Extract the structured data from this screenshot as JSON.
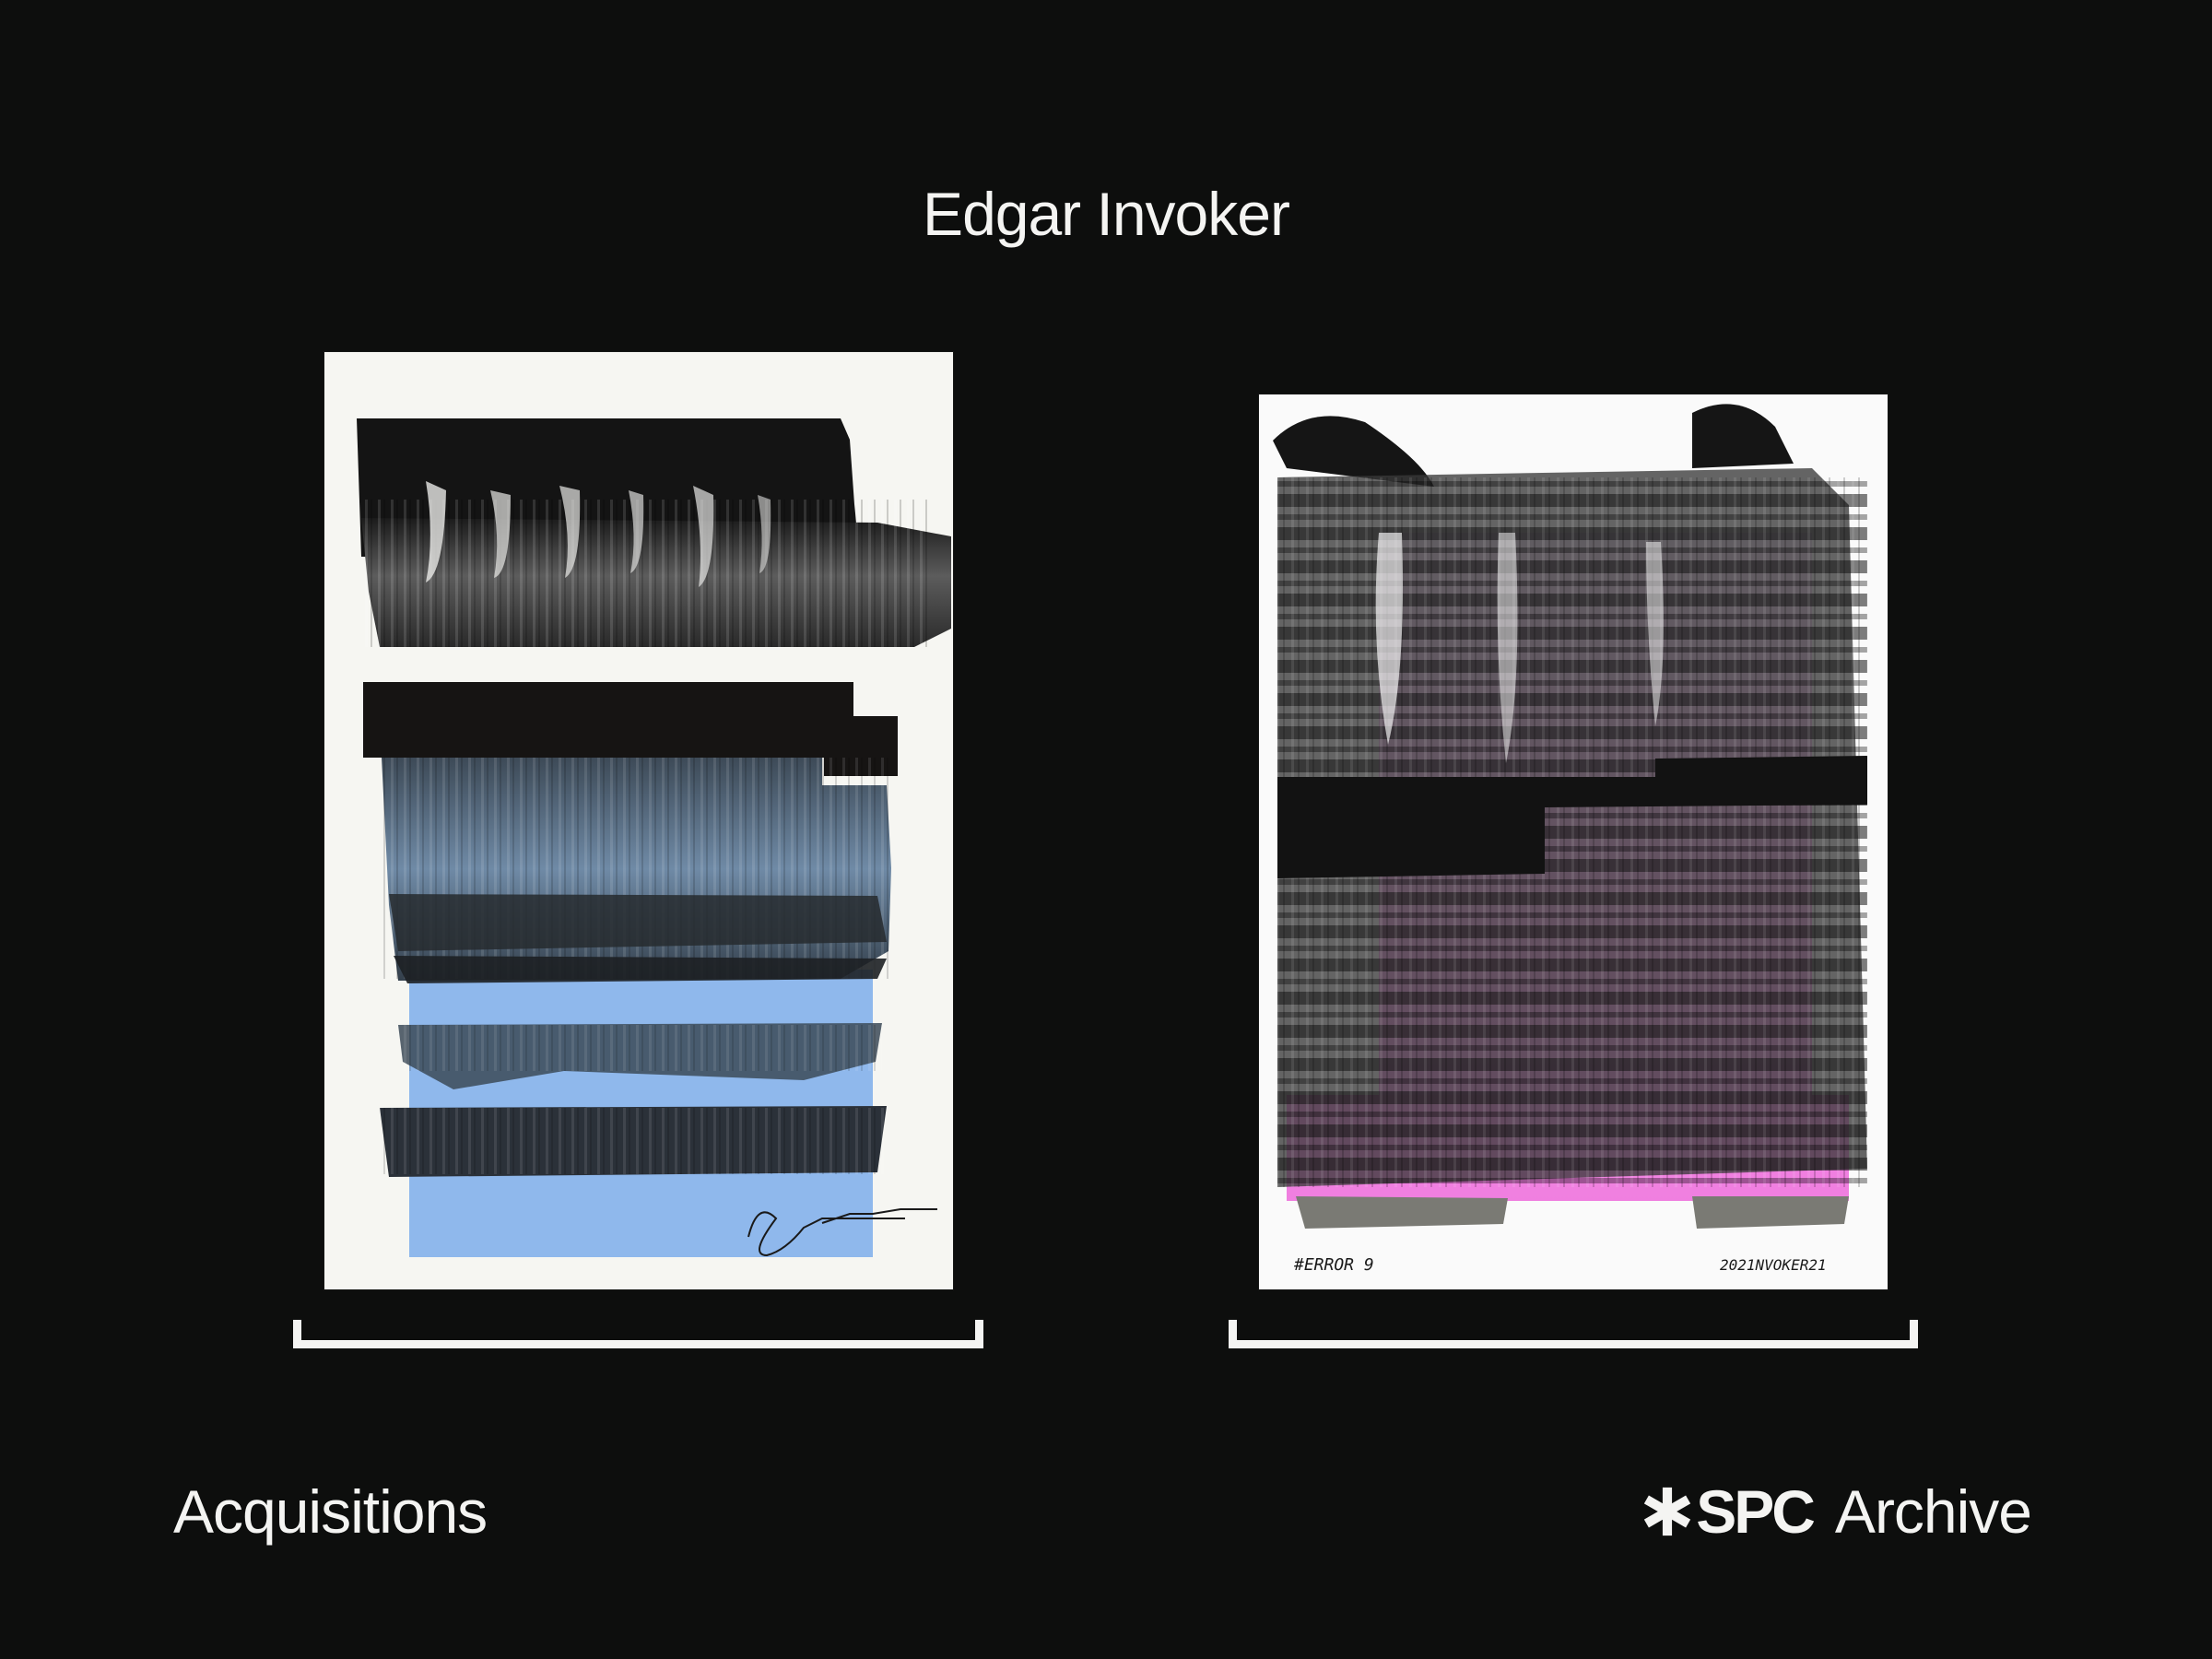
{
  "header": {
    "title": "Edgar Invoker"
  },
  "artworks": [
    {
      "accent_color": "#8fb8ec",
      "signature": "Invoker 2021"
    },
    {
      "accent_color": "#f07fe0",
      "inscription_left": "#ERROR 9",
      "inscription_right": "2021NVOKER21"
    }
  ],
  "footer": {
    "left_label": "Acquisitions",
    "brand_mark": "SPC",
    "brand_icon": "asterisk-icon",
    "right_label": "Archive"
  },
  "colors": {
    "background": "#0d0e0d",
    "text": "#f4f4f2"
  }
}
